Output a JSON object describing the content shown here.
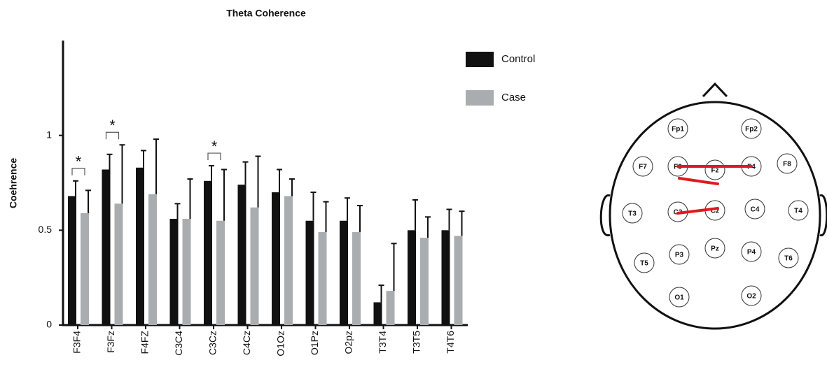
{
  "chart_data": {
    "type": "bar",
    "title": "Theta Coherence",
    "y_label": "Coehrence",
    "categories": [
      "F3F4",
      "F3Fz",
      "F4FZ",
      "C3C4",
      "C3Cz",
      "C4Cz",
      "O1Oz",
      "O1Pz",
      "O2pz",
      "T3T4",
      "T3T5",
      "T4T6"
    ],
    "series": [
      {
        "name": "Control",
        "color": "#111111",
        "values": [
          0.68,
          0.82,
          0.83,
          0.56,
          0.76,
          0.74,
          0.7,
          0.55,
          0.55,
          0.12,
          0.5,
          0.5
        ],
        "errors": [
          0.08,
          0.08,
          0.09,
          0.08,
          0.08,
          0.12,
          0.12,
          0.15,
          0.12,
          0.09,
          0.16,
          0.11
        ]
      },
      {
        "name": "Case",
        "color": "#a9adaf",
        "values": [
          0.59,
          0.64,
          0.69,
          0.56,
          0.55,
          0.62,
          0.68,
          0.49,
          0.49,
          0.18,
          0.46,
          0.47
        ],
        "errors": [
          0.12,
          0.31,
          0.29,
          0.21,
          0.27,
          0.27,
          0.09,
          0.16,
          0.14,
          0.25,
          0.11,
          0.13
        ]
      }
    ],
    "ylim": [
      0,
      1.5
    ],
    "yticks": [
      0,
      0.5,
      1
    ],
    "annotations": [
      {
        "text": "*",
        "x": "F3F4"
      },
      {
        "text": "*",
        "x": "F3Fz"
      },
      {
        "text": "*",
        "x": "C3Cz"
      }
    ]
  },
  "diagram": {
    "electrodes": [
      {
        "label": "Fp1"
      },
      {
        "label": "Fp2"
      },
      {
        "label": "F7"
      },
      {
        "label": "F3"
      },
      {
        "label": "Fz"
      },
      {
        "label": "F4"
      },
      {
        "label": "F8"
      },
      {
        "label": "T3"
      },
      {
        "label": "C3"
      },
      {
        "label": "Cz"
      },
      {
        "label": "C4"
      },
      {
        "label": "T4"
      },
      {
        "label": "T5"
      },
      {
        "label": "P3"
      },
      {
        "label": "Pz"
      },
      {
        "label": "P4"
      },
      {
        "label": "T6"
      },
      {
        "label": "O1"
      },
      {
        "label": "O2"
      }
    ]
  }
}
